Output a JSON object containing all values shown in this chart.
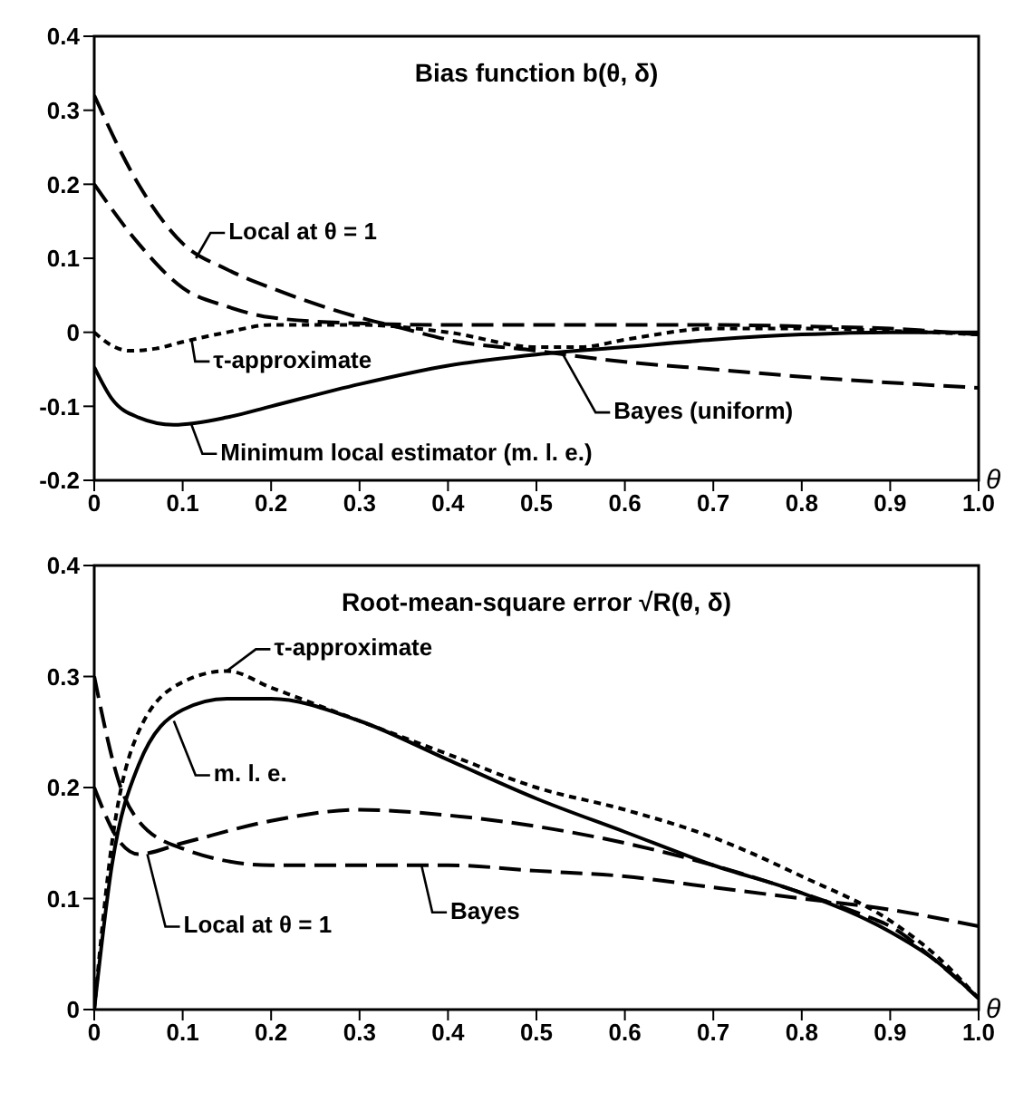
{
  "chart_data": [
    {
      "type": "line",
      "title": "Bias function b(θ, δ)",
      "xlabel": "θ",
      "xlim": [
        0,
        1
      ],
      "xticks": [
        0,
        0.1,
        0.2,
        0.3,
        0.4,
        0.5,
        0.6,
        0.7,
        0.8,
        0.9,
        {
          "value": 1,
          "label": "1.0"
        }
      ],
      "ylim": [
        -0.2,
        0.4
      ],
      "yticks": [
        -0.2,
        -0.1,
        0,
        0.1,
        0.2,
        0.3,
        0.4
      ],
      "grid": false,
      "legend": false,
      "marker": "none",
      "series": [
        {
          "color": "#000000",
          "line_style": "dashed",
          "x": [
            0,
            0.05,
            0.1,
            0.15,
            0.2,
            0.3,
            0.4,
            0.5,
            0.6,
            0.7,
            0.8,
            0.9,
            1
          ],
          "values": [
            0.2,
            0.12,
            0.06,
            0.035,
            0.02,
            0.012,
            0.01,
            0.01,
            0.01,
            0.01,
            0.008,
            0.005,
            -0.003
          ]
        },
        {
          "color": "#000000",
          "line_style": "dotted",
          "x": [
            0,
            0.02,
            0.04,
            0.07,
            0.1,
            0.15,
            0.2,
            0.3,
            0.4,
            0.5,
            0.55,
            0.6,
            0.7,
            0.8,
            0.9,
            1
          ],
          "values": [
            0,
            -0.018,
            -0.025,
            -0.022,
            -0.013,
            0,
            0.01,
            0.01,
            0,
            -0.02,
            -0.02,
            -0.01,
            0.005,
            0.005,
            0.002,
            -0.003
          ]
        },
        {
          "color": "#000000",
          "line_style": "dashed",
          "x": [
            0,
            0.05,
            0.1,
            0.15,
            0.2,
            0.3,
            0.35,
            0.4,
            0.5,
            0.6,
            0.7,
            0.8,
            0.9,
            1
          ],
          "values": [
            0.32,
            0.2,
            0.12,
            0.085,
            0.06,
            0.02,
            0.005,
            -0.01,
            -0.025,
            -0.04,
            -0.05,
            -0.06,
            -0.068,
            -0.075
          ]
        },
        {
          "color": "#000000",
          "line_style": "solid",
          "x": [
            0,
            0.02,
            0.05,
            0.09,
            0.15,
            0.2,
            0.3,
            0.4,
            0.5,
            0.6,
            0.7,
            0.8,
            0.9,
            1
          ],
          "values": [
            -0.047,
            -0.09,
            -0.115,
            -0.125,
            -0.115,
            -0.1,
            -0.07,
            -0.045,
            -0.03,
            -0.02,
            -0.01,
            -0.003,
            0,
            0
          ]
        }
      ],
      "annotations": [
        {
          "text": "Local at θ = 1",
          "x": 0.115,
          "y": 0.1
        },
        {
          "text": "τ-approximate",
          "x": 0.11,
          "y": -0.01
        },
        {
          "text": "Bayes (uniform)",
          "x": 0.53,
          "y": -0.03
        },
        {
          "text": "Minimum local estimator (m. l. e.)",
          "x": 0.11,
          "y": -0.125
        }
      ]
    },
    {
      "type": "line",
      "title": "Root-mean-square error √R(θ, δ)",
      "xlabel": "θ",
      "xlim": [
        0,
        1
      ],
      "xticks": [
        0,
        0.1,
        0.2,
        0.3,
        0.4,
        0.5,
        0.6,
        0.7,
        0.8,
        0.9,
        {
          "value": 1,
          "label": "1.0"
        }
      ],
      "ylim": [
        0,
        0.4
      ],
      "yticks": [
        0,
        0.1,
        0.2,
        0.3,
        0.4
      ],
      "grid": false,
      "legend": false,
      "marker": "none",
      "series": [
        {
          "color": "#000000",
          "line_style": "dotted",
          "x": [
            0,
            0.02,
            0.05,
            0.1,
            0.15,
            0.2,
            0.3,
            0.4,
            0.5,
            0.6,
            0.7,
            0.8,
            0.9,
            0.95,
            1
          ],
          "values": [
            0,
            0.15,
            0.25,
            0.295,
            0.305,
            0.29,
            0.26,
            0.23,
            0.2,
            0.18,
            0.155,
            0.12,
            0.08,
            0.05,
            0.01
          ]
        },
        {
          "color": "#000000",
          "line_style": "solid",
          "x": [
            0,
            0.02,
            0.05,
            0.1,
            0.15,
            0.2,
            0.3,
            0.4,
            0.5,
            0.6,
            0.7,
            0.8,
            0.9,
            0.95,
            1
          ],
          "values": [
            0,
            0.13,
            0.22,
            0.27,
            0.28,
            0.28,
            0.26,
            0.225,
            0.19,
            0.16,
            0.13,
            0.105,
            0.07,
            0.045,
            0.01
          ]
        },
        {
          "color": "#000000",
          "line_style": "dashed",
          "x": [
            0,
            0.03,
            0.05,
            0.1,
            0.2,
            0.3,
            0.4,
            0.5,
            0.6,
            0.7,
            0.8,
            0.87,
            0.9,
            0.95,
            1
          ],
          "values": [
            0.2,
            0.15,
            0.14,
            0.15,
            0.17,
            0.18,
            0.175,
            0.165,
            0.15,
            0.13,
            0.105,
            0.085,
            0.075,
            0.045,
            0.01
          ]
        },
        {
          "color": "#000000",
          "line_style": "dashed",
          "x": [
            0,
            0.03,
            0.05,
            0.1,
            0.2,
            0.3,
            0.4,
            0.5,
            0.6,
            0.7,
            0.8,
            0.9,
            1
          ],
          "values": [
            0.3,
            0.2,
            0.17,
            0.145,
            0.13,
            0.13,
            0.13,
            0.125,
            0.12,
            0.11,
            0.1,
            0.09,
            0.075
          ]
        }
      ],
      "annotations": [
        {
          "text": "τ-approximate",
          "x": 0.15,
          "y": 0.305
        },
        {
          "text": "m. l. e.",
          "x": 0.09,
          "y": 0.26
        },
        {
          "text": "Local at θ = 1",
          "x": 0.06,
          "y": 0.14
        },
        {
          "text": "Bayes",
          "x": 0.37,
          "y": 0.13
        }
      ]
    }
  ]
}
